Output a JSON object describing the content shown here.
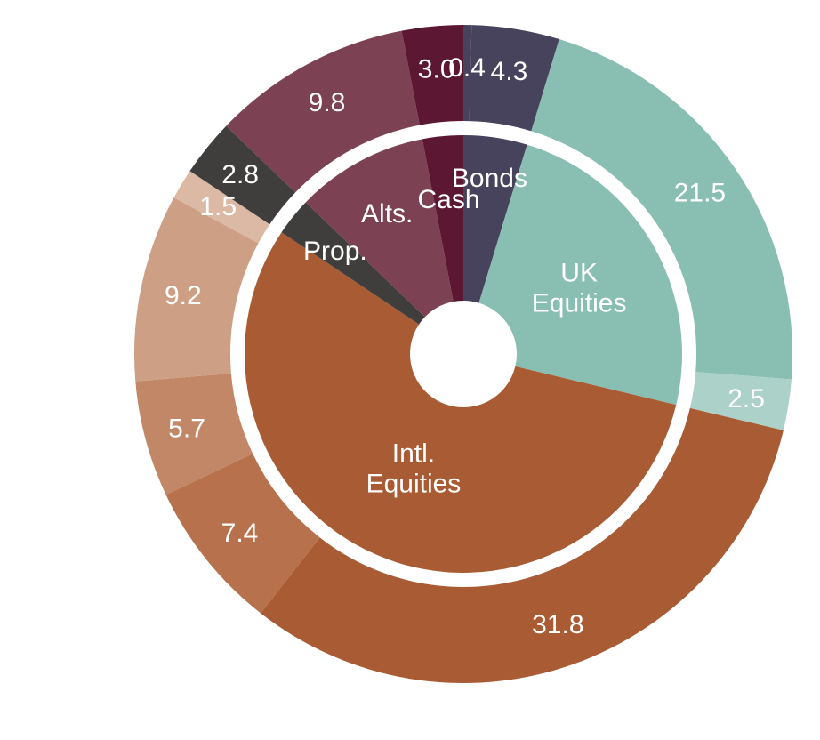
{
  "chart_data": {
    "type": "pie",
    "inner": {
      "slices": [
        {
          "label": [
            "Bonds"
          ],
          "value": 4.7,
          "color": "#48435d"
        },
        {
          "label": [
            "UK",
            "Equities"
          ],
          "value": 24.0,
          "color": "#89bfb3"
        },
        {
          "label": [
            "Intl.",
            "Equities"
          ],
          "value": 55.6,
          "color": "#a95b34"
        },
        {
          "label": [
            "Prop."
          ],
          "value": 2.8,
          "color": "#403e3d"
        },
        {
          "label": [
            "Alts."
          ],
          "value": 9.8,
          "color": "#7c4253"
        },
        {
          "label": [
            "Cash"
          ],
          "value": 3.0,
          "color": "#5c1733"
        }
      ]
    },
    "outer": {
      "slices": [
        {
          "value": 0.4,
          "text": "0.4",
          "color": "#48435d"
        },
        {
          "value": 4.3,
          "text": "4.3",
          "color": "#48435d"
        },
        {
          "value": 21.5,
          "text": "21.5",
          "color": "#89bfb3"
        },
        {
          "value": 2.5,
          "text": "2.5",
          "color": "#acd1c8"
        },
        {
          "value": 31.8,
          "text": "31.8",
          "color": "#a95b34"
        },
        {
          "value": 7.4,
          "text": "7.4",
          "color": "#b7714d"
        },
        {
          "value": 5.7,
          "text": "5.7",
          "color": "#c28766"
        },
        {
          "value": 9.2,
          "text": "9.2",
          "color": "#cd9f85"
        },
        {
          "value": 1.5,
          "text": "1.5",
          "color": "#dcb9a5"
        },
        {
          "value": 2.8,
          "text": "2.8",
          "color": "#403e3d"
        },
        {
          "value": 9.8,
          "text": "9.8",
          "color": "#7c4253"
        },
        {
          "value": 3.0,
          "text": "3.0",
          "color": "#5c1733"
        }
      ]
    },
    "label_color": "#ffffff",
    "background": "#ffffff"
  }
}
